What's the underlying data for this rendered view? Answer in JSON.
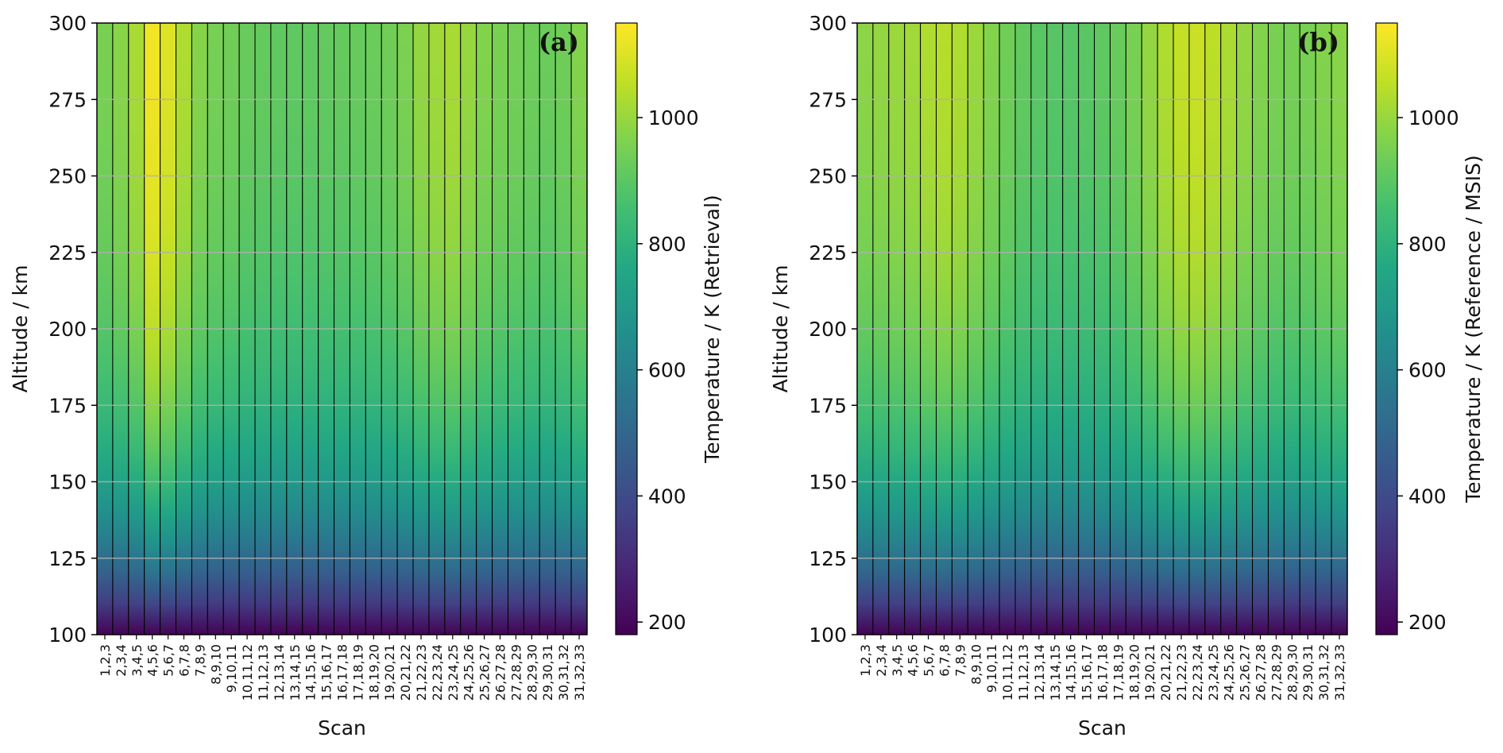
{
  "figure": {
    "panel_count": 2
  },
  "chart_data": [
    {
      "type": "heatmap",
      "panel_label": "(a)",
      "xlabel": "Scan",
      "ylabel": "Altitude / km",
      "colorbar_label": "Temperature / K (Retrieval)",
      "colormap": "viridis",
      "clim": [
        180,
        1150
      ],
      "colorbar_ticks": [
        200,
        400,
        600,
        800,
        1000
      ],
      "ylim": [
        100,
        300
      ],
      "yticks": [
        100,
        125,
        150,
        175,
        200,
        225,
        250,
        275,
        300
      ],
      "grid": "horizontal",
      "categories": [
        "1,2,3",
        "2,3,4",
        "3,4,5",
        "4,5,6",
        "5,6,7",
        "6,7,8",
        "7,8,9",
        "8,9,10",
        "9,10,11",
        "10,11,12",
        "11,12,13",
        "12,13,14",
        "13,14,15",
        "14,15,16",
        "15,16,17",
        "16,17,18",
        "17,18,19",
        "18,19,20",
        "19,20,21",
        "20,21,22",
        "21,22,23",
        "22,23,24",
        "23,24,25",
        "24,25,26",
        "25,26,27",
        "26,27,28",
        "27,28,29",
        "28,29,30",
        "29,30,31",
        "30,31,32",
        "31,32,33"
      ],
      "exospheric_temperature": [
        960,
        985,
        1030,
        1140,
        1110,
        1040,
        980,
        955,
        945,
        930,
        925,
        918,
        915,
        918,
        922,
        925,
        928,
        935,
        945,
        965,
        1000,
        1020,
        1030,
        1005,
        975,
        960,
        950,
        940,
        935,
        945,
        975
      ]
    },
    {
      "type": "heatmap",
      "panel_label": "(b)",
      "xlabel": "Scan",
      "ylabel": "Altitude / km",
      "colorbar_label": "Temperature / K (Reference / MSIS)",
      "colormap": "viridis",
      "clim": [
        180,
        1150
      ],
      "colorbar_ticks": [
        200,
        400,
        600,
        800,
        1000
      ],
      "ylim": [
        100,
        300
      ],
      "yticks": [
        100,
        125,
        150,
        175,
        200,
        225,
        250,
        275,
        300
      ],
      "grid": "horizontal",
      "categories": [
        "1,2,3",
        "2,3,4",
        "3,4,5",
        "4,5,6",
        "5,6,7",
        "6,7,8",
        "7,8,9",
        "8,9,10",
        "9,10,11",
        "10,11,12",
        "11,12,13",
        "12,13,14",
        "13,14,15",
        "14,15,16",
        "15,16,17",
        "16,17,18",
        "17,18,19",
        "18,19,20",
        "19,20,21",
        "20,21,22",
        "21,22,23",
        "22,23,24",
        "23,24,25",
        "24,25,26",
        "25,26,27",
        "26,27,28",
        "27,28,29",
        "28,29,30",
        "29,30,31",
        "30,31,32",
        "31,32,33"
      ],
      "exospheric_temperature": [
        990,
        1000,
        1010,
        1020,
        1040,
        1050,
        1040,
        1010,
        975,
        945,
        920,
        905,
        900,
        900,
        905,
        915,
        930,
        960,
        1000,
        1040,
        1070,
        1080,
        1060,
        1035,
        1000,
        975,
        960,
        955,
        960,
        975,
        985
      ]
    }
  ]
}
